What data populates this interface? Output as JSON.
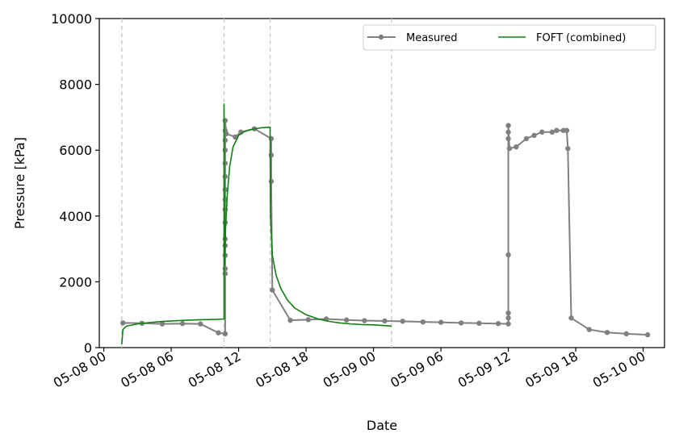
{
  "chart_data": {
    "type": "line",
    "title": "",
    "xlabel": "Date",
    "ylabel": "Pressure [kPa]",
    "ylim": [
      0,
      10000
    ],
    "xlim": [
      "2023-05-07T23:36",
      "2023-05-10T01:54"
    ],
    "y_ticks": [
      0,
      2000,
      4000,
      6000,
      8000,
      10000
    ],
    "y_tick_labels": [
      "0",
      "2000",
      "4000",
      "6000",
      "8000",
      "10000"
    ],
    "x_ticks": [
      "2023-05-08T00:00",
      "2023-05-08T06:00",
      "2023-05-08T12:00",
      "2023-05-08T18:00",
      "2023-05-09T00:00",
      "2023-05-09T06:00",
      "2023-05-09T12:00",
      "2023-05-09T18:00",
      "2023-05-10T00:00"
    ],
    "x_tick_labels": [
      "05-08 00",
      "05-08 06",
      "05-08 12",
      "05-08 18",
      "05-09 00",
      "05-09 06",
      "05-09 12",
      "05-09 18",
      "05-10 00"
    ],
    "grid": false,
    "legend_position": "top-right",
    "vertical_markers": [
      "2023-05-08T01:36",
      "2023-05-08T10:42",
      "2023-05-08T14:48",
      "2023-05-09T01:36"
    ],
    "series": [
      {
        "name": "Measured",
        "color": "#808080",
        "marker": "circle",
        "points": [
          [
            "2023-05-08T01:42",
            750
          ],
          [
            "2023-05-08T03:24",
            740
          ],
          [
            "2023-05-08T05:12",
            720
          ],
          [
            "2023-05-08T07:00",
            730
          ],
          [
            "2023-05-08T08:36",
            720
          ],
          [
            "2023-05-08T10:12",
            450
          ],
          [
            "2023-05-08T10:48",
            420
          ],
          [
            "2023-05-08T10:48",
            2250
          ],
          [
            "2023-05-08T10:48",
            2400
          ],
          [
            "2023-05-08T10:48",
            2800
          ],
          [
            "2023-05-08T10:48",
            3100
          ],
          [
            "2023-05-08T10:48",
            3300
          ],
          [
            "2023-05-08T10:48",
            3800
          ],
          [
            "2023-05-08T10:48",
            4200
          ],
          [
            "2023-05-08T10:48",
            4500
          ],
          [
            "2023-05-08T10:48",
            4800
          ],
          [
            "2023-05-08T10:48",
            5200
          ],
          [
            "2023-05-08T10:48",
            5600
          ],
          [
            "2023-05-08T10:48",
            6000
          ],
          [
            "2023-05-08T10:48",
            6300
          ],
          [
            "2023-05-08T10:48",
            6600
          ],
          [
            "2023-05-08T10:48",
            6900
          ],
          [
            "2023-05-08T10:54",
            6500
          ],
          [
            "2023-05-08T11:42",
            6400
          ],
          [
            "2023-05-08T12:12",
            6550
          ],
          [
            "2023-05-08T13:24",
            6650
          ],
          [
            "2023-05-08T14:54",
            6350
          ],
          [
            "2023-05-08T14:54",
            5850
          ],
          [
            "2023-05-08T14:54",
            5050
          ],
          [
            "2023-05-08T15:00",
            1750
          ],
          [
            "2023-05-08T16:36",
            830
          ],
          [
            "2023-05-08T18:12",
            850
          ],
          [
            "2023-05-08T19:48",
            870
          ],
          [
            "2023-05-08T21:36",
            840
          ],
          [
            "2023-05-08T23:12",
            820
          ],
          [
            "2023-05-09T01:00",
            810
          ],
          [
            "2023-05-09T02:36",
            800
          ],
          [
            "2023-05-09T04:24",
            780
          ],
          [
            "2023-05-09T06:00",
            770
          ],
          [
            "2023-05-09T07:48",
            750
          ],
          [
            "2023-05-09T09:24",
            740
          ],
          [
            "2023-05-09T11:06",
            730
          ],
          [
            "2023-05-09T12:00",
            720
          ],
          [
            "2023-05-09T12:00",
            1050
          ],
          [
            "2023-05-09T12:00",
            900
          ],
          [
            "2023-05-09T12:00",
            2820
          ],
          [
            "2023-05-09T12:00",
            6350
          ],
          [
            "2023-05-09T12:00",
            6550
          ],
          [
            "2023-05-09T12:00",
            6750
          ],
          [
            "2023-05-09T12:06",
            6050
          ],
          [
            "2023-05-09T12:42",
            6100
          ],
          [
            "2023-05-09T13:36",
            6350
          ],
          [
            "2023-05-09T14:18",
            6450
          ],
          [
            "2023-05-09T15:00",
            6550
          ],
          [
            "2023-05-09T15:54",
            6550
          ],
          [
            "2023-05-09T16:18",
            6600
          ],
          [
            "2023-05-09T16:54",
            6600
          ],
          [
            "2023-05-09T17:12",
            6600
          ],
          [
            "2023-05-09T17:18",
            6050
          ],
          [
            "2023-05-09T17:36",
            900
          ],
          [
            "2023-05-09T19:12",
            550
          ],
          [
            "2023-05-09T20:48",
            460
          ],
          [
            "2023-05-09T22:30",
            420
          ],
          [
            "2023-05-10T00:24",
            390
          ]
        ]
      },
      {
        "name": "FOFT (combined)",
        "color": "#108010",
        "points": [
          [
            "2023-05-08T01:36",
            100
          ],
          [
            "2023-05-08T01:42",
            550
          ],
          [
            "2023-05-08T02:00",
            650
          ],
          [
            "2023-05-08T03:00",
            720
          ],
          [
            "2023-05-08T04:00",
            760
          ],
          [
            "2023-05-08T05:00",
            790
          ],
          [
            "2023-05-08T06:00",
            810
          ],
          [
            "2023-05-08T07:00",
            825
          ],
          [
            "2023-05-08T08:00",
            840
          ],
          [
            "2023-05-08T09:00",
            850
          ],
          [
            "2023-05-08T10:00",
            860
          ],
          [
            "2023-05-08T10:42",
            870
          ],
          [
            "2023-05-08T10:42",
            7400
          ],
          [
            "2023-05-08T10:45",
            2500
          ],
          [
            "2023-05-08T10:50",
            3600
          ],
          [
            "2023-05-08T11:00",
            4700
          ],
          [
            "2023-05-08T11:12",
            5500
          ],
          [
            "2023-05-08T11:30",
            6100
          ],
          [
            "2023-05-08T12:00",
            6450
          ],
          [
            "2023-05-08T12:30",
            6560
          ],
          [
            "2023-05-08T13:00",
            6620
          ],
          [
            "2023-05-08T14:00",
            6680
          ],
          [
            "2023-05-08T14:48",
            6700
          ],
          [
            "2023-05-08T14:50",
            4000
          ],
          [
            "2023-05-08T15:00",
            2800
          ],
          [
            "2023-05-08T15:20",
            2200
          ],
          [
            "2023-05-08T15:45",
            1800
          ],
          [
            "2023-05-08T16:20",
            1450
          ],
          [
            "2023-05-08T17:00",
            1200
          ],
          [
            "2023-05-08T18:00",
            1000
          ],
          [
            "2023-05-08T19:00",
            880
          ],
          [
            "2023-05-08T20:00",
            800
          ],
          [
            "2023-05-08T21:00",
            750
          ],
          [
            "2023-05-08T22:00",
            720
          ],
          [
            "2023-05-08T23:00",
            700
          ],
          [
            "2023-05-09T00:00",
            690
          ],
          [
            "2023-05-09T01:00",
            670
          ],
          [
            "2023-05-09T01:36",
            650
          ]
        ]
      }
    ]
  }
}
